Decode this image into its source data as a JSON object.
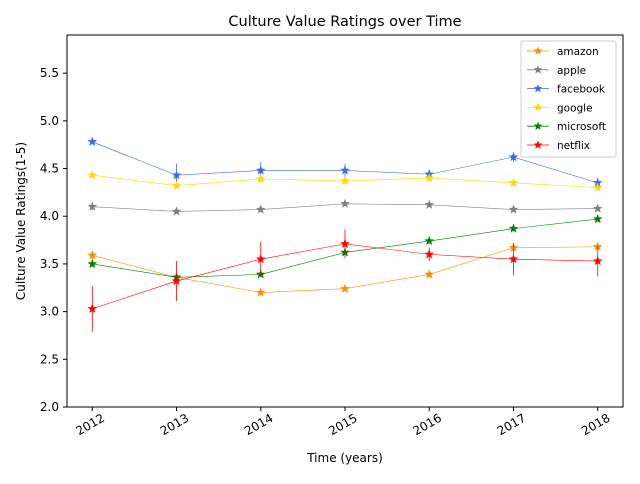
{
  "chart_data": {
    "type": "line",
    "title": "Culture Value Ratings over Time",
    "xlabel": "Time (years)",
    "ylabel": "Culture Value Ratings(1-5)",
    "x": [
      2012,
      2013,
      2014,
      2015,
      2016,
      2017,
      2018
    ],
    "xlim": [
      2011.7,
      2018.3
    ],
    "ylim": [
      2.0,
      5.9
    ],
    "yticks": [
      2.0,
      2.5,
      3.0,
      3.5,
      4.0,
      4.5,
      5.0,
      5.5
    ],
    "ytick_labels": [
      "2.0",
      "2.5",
      "3.0",
      "3.5",
      "4.0",
      "4.5",
      "5.0",
      "5.5"
    ],
    "xtick_labels": [
      "2012",
      "2013",
      "2014",
      "2015",
      "2016",
      "2017",
      "2018"
    ],
    "grid": false,
    "legend_position": "top-right",
    "series": [
      {
        "name": "amazon",
        "color": "#ff8c00",
        "values": [
          3.59,
          3.36,
          3.2,
          3.24,
          3.39,
          3.67,
          3.68
        ],
        "errors": [
          0.05,
          0.03,
          0.02,
          0.02,
          0.03,
          0.04,
          0.04
        ]
      },
      {
        "name": "apple",
        "color": "#808080",
        "values": [
          4.1,
          4.05,
          4.07,
          4.13,
          4.12,
          4.07,
          4.08
        ],
        "errors": [
          0.04,
          0.02,
          0.02,
          0.02,
          0.02,
          0.02,
          0.02
        ]
      },
      {
        "name": "facebook",
        "color": "#4169e1",
        "values": [
          4.78,
          4.43,
          4.48,
          4.48,
          4.44,
          4.62,
          4.35
        ],
        "errors": [
          0.02,
          0.12,
          0.09,
          0.07,
          0.05,
          0.05,
          0.05
        ]
      },
      {
        "name": "google",
        "color": "#ffd700",
        "values": [
          4.43,
          4.32,
          4.39,
          4.37,
          4.4,
          4.35,
          4.3
        ],
        "errors": [
          0.02,
          0.02,
          0.02,
          0.02,
          0.02,
          0.02,
          0.02
        ]
      },
      {
        "name": "microsoft",
        "color": "#008000",
        "values": [
          3.5,
          3.36,
          3.39,
          3.62,
          3.74,
          3.87,
          3.97
        ],
        "errors": [
          0.03,
          0.03,
          0.02,
          0.02,
          0.02,
          0.02,
          0.02
        ]
      },
      {
        "name": "netflix",
        "color": "#ff0000",
        "values": [
          3.03,
          3.32,
          3.55,
          3.71,
          3.6,
          3.55,
          3.53
        ],
        "errors": [
          0.24,
          0.21,
          0.18,
          0.15,
          0.07,
          0.17,
          0.16
        ]
      }
    ]
  }
}
